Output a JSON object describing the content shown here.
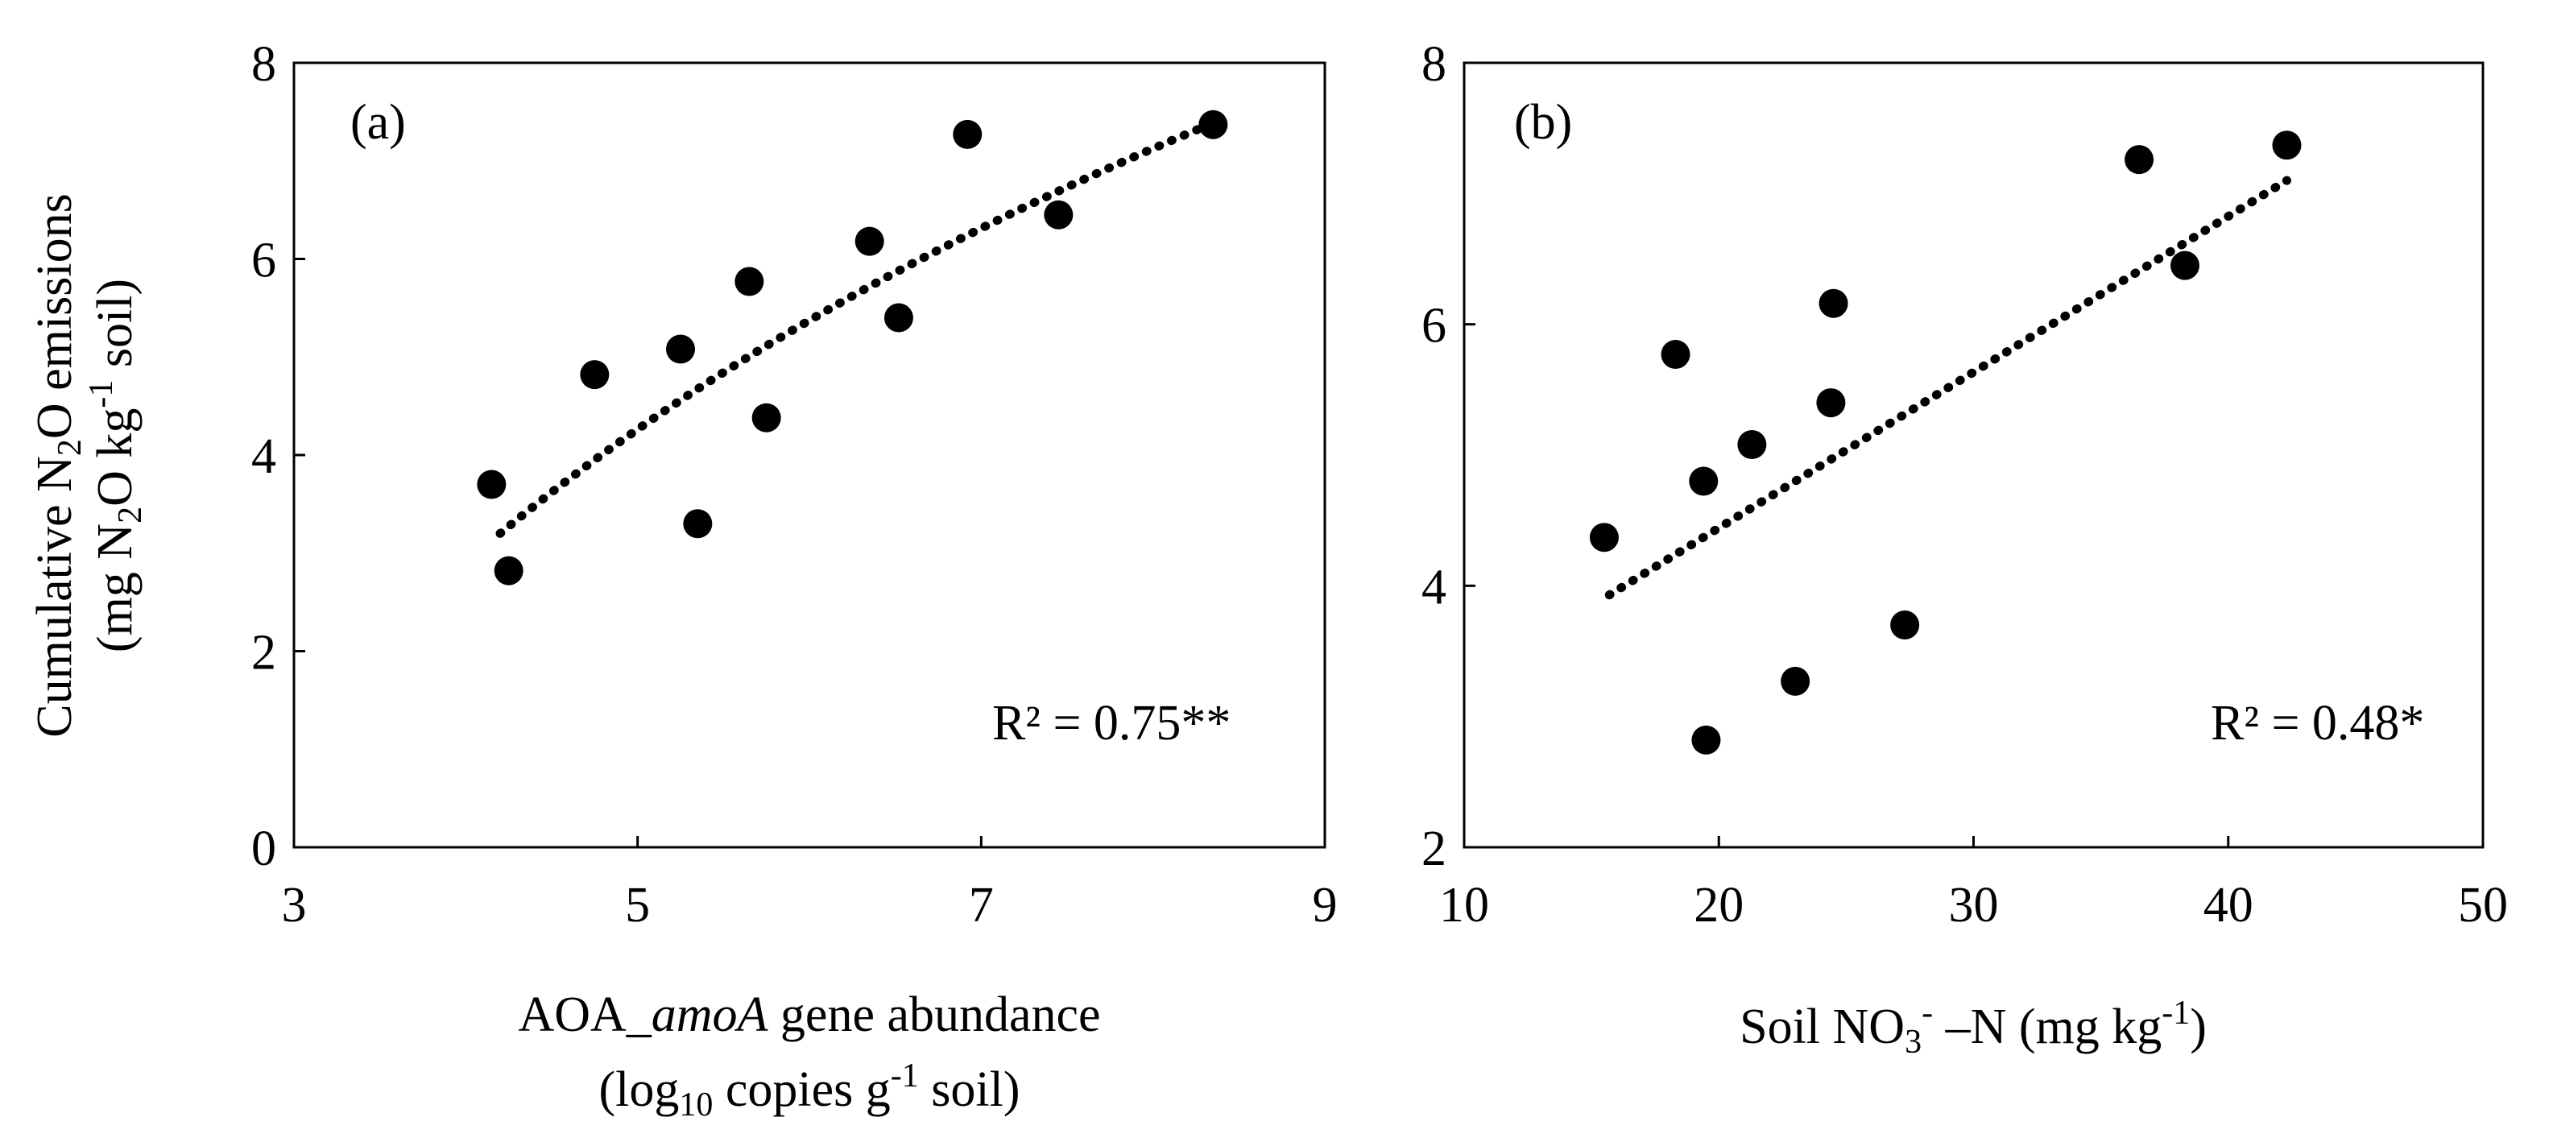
{
  "figure": {
    "y_axis_title_line1_pre": "Cumulative N",
    "y_axis_title_line1_sub": "2",
    "y_axis_title_line1_post": "O emissions",
    "y_axis_title_line2_pre": "(mg N",
    "y_axis_title_line2_sub": "2",
    "y_axis_title_line2_mid": "O kg",
    "y_axis_title_line2_sup": "-1",
    "y_axis_title_line2_post": " soil)"
  },
  "chart_data": [
    {
      "type": "scatter",
      "panel_label": "(a)",
      "xlabel_line1_pre": "AOA_",
      "xlabel_line1_italic": "amoA",
      "xlabel_line1_post": " gene abundance",
      "xlabel_line2_pre": "(log",
      "xlabel_line2_sub": "10",
      "xlabel_line2_mid": " copies g",
      "xlabel_line2_sup": "-1",
      "xlabel_line2_post": " soil)",
      "xlim": [
        3,
        9
      ],
      "ylim": [
        0,
        8
      ],
      "xticks": [
        3,
        5,
        7,
        9
      ],
      "yticks": [
        0,
        2,
        4,
        6,
        8
      ],
      "x": [
        4.15,
        4.25,
        4.75,
        5.25,
        5.35,
        5.65,
        5.75,
        6.35,
        6.52,
        6.92,
        7.45,
        8.35
      ],
      "y": [
        3.7,
        2.82,
        4.82,
        5.08,
        3.3,
        5.77,
        4.38,
        6.18,
        5.4,
        7.27,
        6.45,
        7.37
      ],
      "trendline": {
        "type": "log",
        "x_start": 4.2,
        "x_end": 8.3,
        "y_start": 3.2,
        "y_end": 7.35
      },
      "annotation": "R² = 0.75**"
    },
    {
      "type": "scatter",
      "panel_label": "(b)",
      "xlabel_pre": "Soil NO",
      "xlabel_sub": "3",
      "xlabel_sup": "-",
      "xlabel_mid": " –N (mg kg",
      "xlabel_sup2": "-1",
      "xlabel_post": ")",
      "xlim": [
        10,
        50
      ],
      "ylim": [
        2,
        8
      ],
      "xticks": [
        10,
        20,
        30,
        40,
        50
      ],
      "yticks": [
        2,
        4,
        6,
        8
      ],
      "x": [
        15.5,
        18.3,
        19.4,
        19.5,
        21.3,
        23.0,
        24.4,
        24.5,
        27.3,
        36.5,
        38.3,
        42.3
      ],
      "y": [
        4.37,
        5.77,
        4.8,
        2.82,
        5.08,
        3.27,
        5.4,
        6.16,
        3.7,
        7.26,
        6.45,
        7.37
      ],
      "trendline": {
        "type": "linear",
        "x_start": 15.7,
        "x_end": 42.3,
        "y_start": 3.93,
        "y_end": 7.1
      },
      "annotation": "R² = 0.48*"
    }
  ]
}
